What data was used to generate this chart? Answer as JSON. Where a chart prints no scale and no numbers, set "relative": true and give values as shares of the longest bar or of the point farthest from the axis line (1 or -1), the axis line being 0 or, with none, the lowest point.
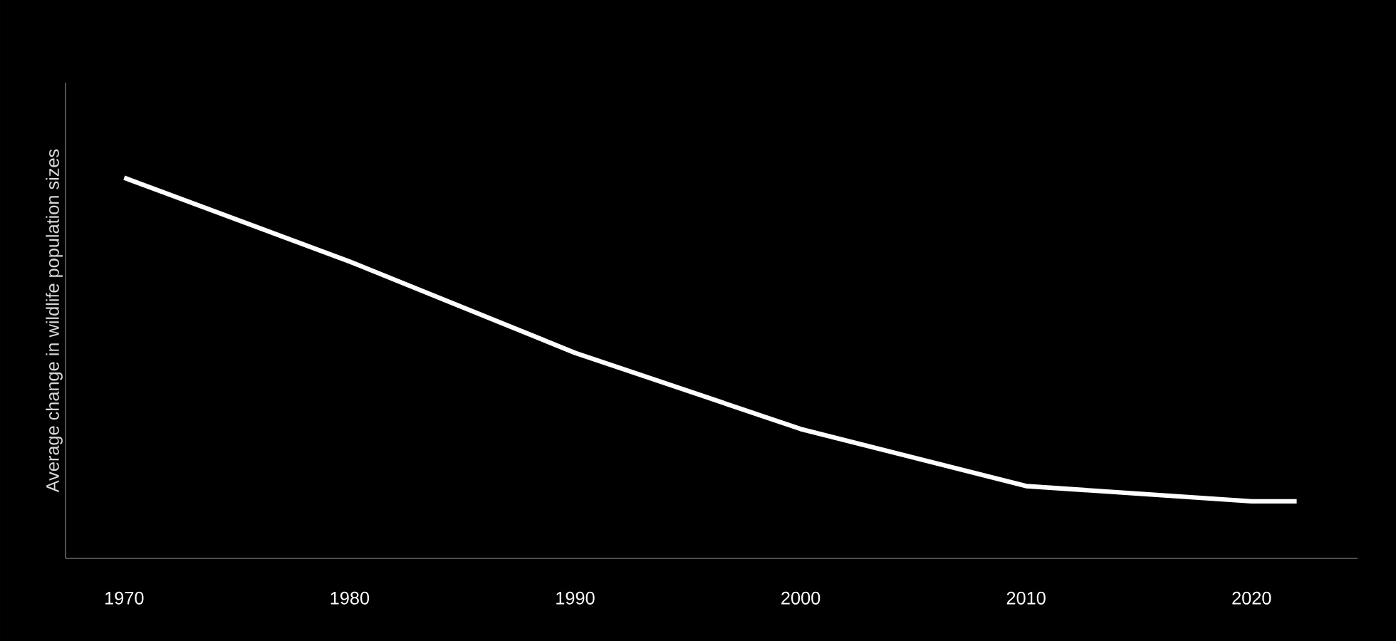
{
  "chart_data": {
    "type": "line",
    "ylabel": "Average change in wildlife population sizes",
    "x": [
      1970,
      1980,
      1990,
      2000,
      2010,
      2020,
      2022
    ],
    "values": [
      1,
      0.78,
      0.54,
      0.34,
      0.19,
      0.15,
      0.15
    ],
    "color": "#ffffff",
    "relative": true,
    "xlim": [
      1967.4,
      2024.7
    ],
    "xticks": [
      1970,
      1980,
      1990,
      2000,
      2010,
      2020
    ]
  }
}
